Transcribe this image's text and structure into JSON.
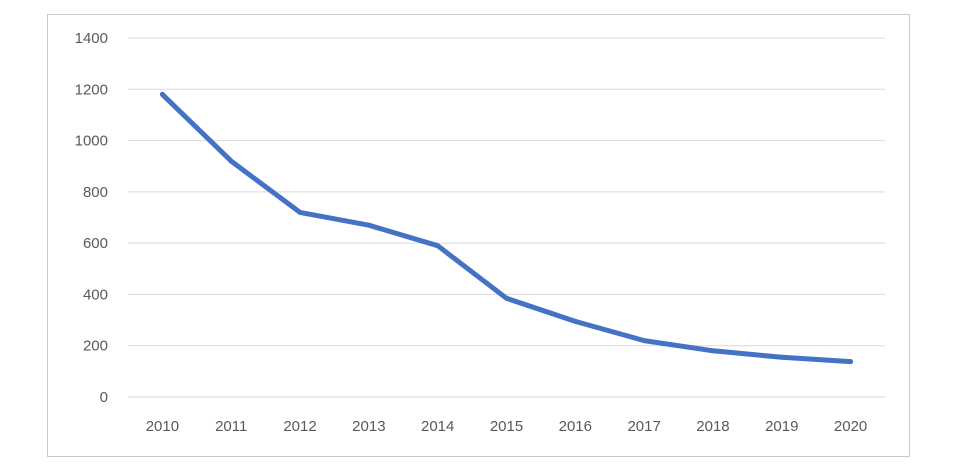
{
  "chart_data": {
    "type": "line",
    "title": "",
    "xlabel": "",
    "ylabel": "",
    "categories": [
      "2010",
      "2011",
      "2012",
      "2013",
      "2014",
      "2015",
      "2016",
      "2017",
      "2018",
      "2019",
      "2020"
    ],
    "series": [
      {
        "values": [
          1180,
          920,
          720,
          670,
          590,
          385,
          295,
          220,
          180,
          155,
          138
        ],
        "color": "#4472c4"
      }
    ],
    "ylim": [
      0,
      1400
    ],
    "yticks": [
      0,
      200,
      400,
      600,
      800,
      1000,
      1200,
      1400
    ],
    "grid": true,
    "gridColor": "#d9d9d9",
    "legend": "none"
  }
}
